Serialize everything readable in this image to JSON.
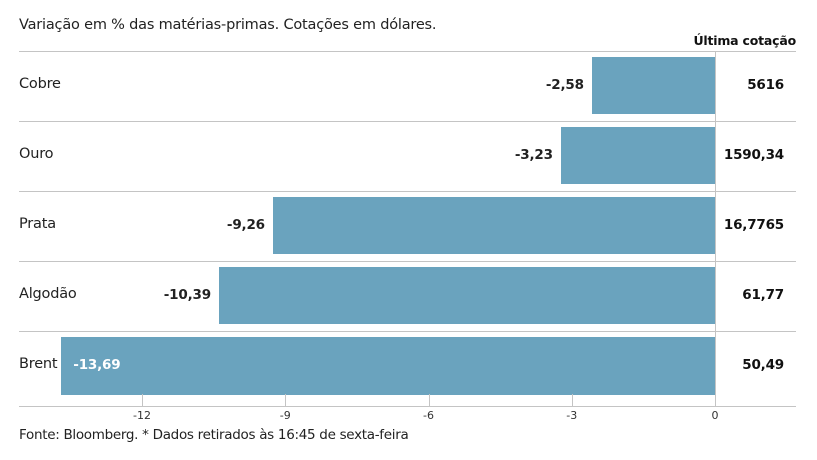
{
  "chart_data": {
    "type": "bar",
    "orientation": "horizontal",
    "title": "Variação em % das matérias-primas. Cotações em dólares.",
    "categories": [
      "Cobre",
      "Ouro",
      "Prata",
      "Algodão",
      "Brent"
    ],
    "values": [
      -2.58,
      -3.23,
      -9.26,
      -10.39,
      -13.69
    ],
    "value_labels": [
      "-2,58",
      "-3,23",
      "-9,26",
      "-10,39",
      "-13,69"
    ],
    "extra_column": {
      "header": "Última cotação",
      "values": [
        "5616",
        "1590,34",
        "16,7765",
        "61,77",
        "50,49"
      ]
    },
    "xlabel": "",
    "ylabel": "",
    "xlim": [
      -14,
      0
    ],
    "xticks": [
      -12,
      -9,
      -6,
      -3,
      0
    ],
    "xtick_labels": [
      "-12",
      "-9",
      "-6",
      "-3",
      "0"
    ],
    "grid": false,
    "legend": null,
    "bar_color": "#6aa3be",
    "footnote": "Fonte: Bloomberg.  * Dados retirados às 16:45 de sexta-feira"
  },
  "subtitle": "Variação em % das matérias-primas. Cotações em dólares.",
  "column_header": "Última cotação",
  "rows": [
    {
      "label": "Cobre",
      "value_label": "-2,58",
      "quote": "5616"
    },
    {
      "label": "Ouro",
      "value_label": "-3,23",
      "quote": "1590,34"
    },
    {
      "label": "Prata",
      "value_label": "-9,26",
      "quote": "16,7765"
    },
    {
      "label": "Algodão",
      "value_label": "-10,39",
      "quote": "61,77"
    },
    {
      "label": "Brent",
      "value_label": "-13,69",
      "quote": "50,49"
    }
  ],
  "axis": {
    "ticks": [
      "-12",
      "-9",
      "-6",
      "-3",
      "0"
    ]
  },
  "footer": "Fonte: Bloomberg.  * Dados retirados às 16:45 de sexta-feira",
  "colors": {
    "bar": "#6aa3be",
    "grid": "#c4c4c4"
  }
}
